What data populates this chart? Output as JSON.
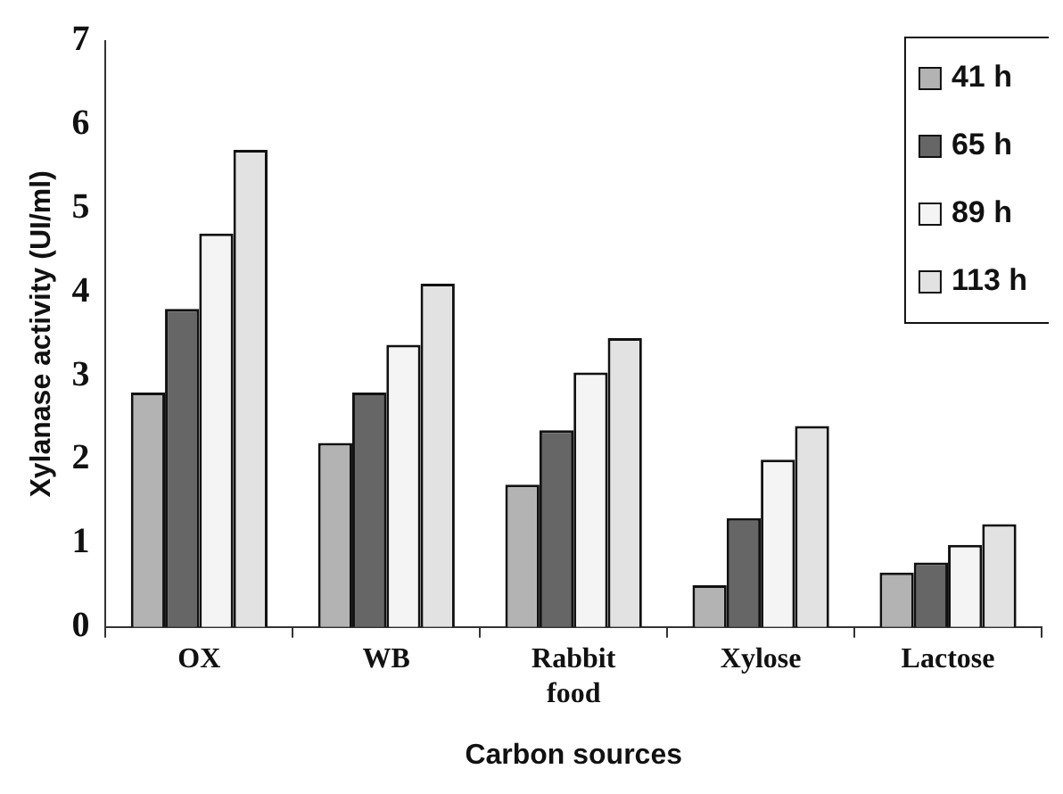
{
  "chart_data": {
    "type": "bar",
    "xlabel": "Carbon sources",
    "ylabel": "Xylanase activity (UI/ml)",
    "categories": [
      "OX",
      "WB",
      "Rabbit food",
      "Xylose",
      "Lactose"
    ],
    "series": [
      {
        "name": "41 h",
        "color": "#b3b3b3",
        "values": [
          2.8,
          2.2,
          1.7,
          0.5,
          0.65
        ]
      },
      {
        "name": "65 h",
        "color": "#666666",
        "values": [
          3.8,
          2.8,
          2.35,
          1.3,
          0.77
        ]
      },
      {
        "name": "89 h",
        "color": "#f4f4f4",
        "values": [
          4.7,
          3.37,
          3.04,
          2.0,
          0.98
        ]
      },
      {
        "name": "113 h",
        "color": "#e2e2e2",
        "values": [
          5.7,
          4.1,
          3.45,
          2.4,
          1.23
        ]
      }
    ],
    "ylim": [
      0,
      7
    ],
    "yticks": [
      0,
      1,
      2,
      3,
      4,
      5,
      6,
      7
    ],
    "grid": false,
    "legend": "top right"
  }
}
